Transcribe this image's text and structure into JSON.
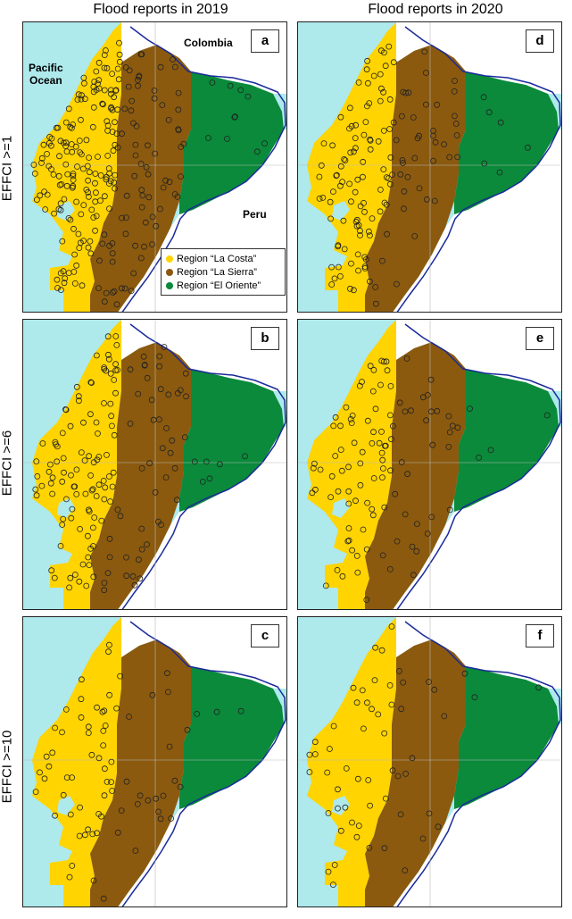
{
  "column_titles": [
    "Flood reports in 2019",
    "Flood reports in 2020"
  ],
  "row_titles": [
    "EFFCI >=1",
    "EFFCI >=6",
    "EFFCI >=10"
  ],
  "panel_letters": [
    "a",
    "d",
    "b",
    "e",
    "c",
    "f"
  ],
  "map_labels": {
    "pacific": "Pacific\nOcean",
    "colombia": "Colombia",
    "peru": "Peru"
  },
  "legend": [
    {
      "label": "Region “La Costa”",
      "color": "#ffd400"
    },
    {
      "label": "Region “La Sierra”",
      "color": "#8b5a0f"
    },
    {
      "label": "Region “El Oriente”",
      "color": "#0a8a3a"
    }
  ],
  "colors": {
    "ocean": "#aee9ec",
    "land_outside": "#ffffff",
    "costa": "#ffd400",
    "sierra": "#8b5a0f",
    "oriente": "#0a8a3a",
    "border": "#1a2a9a"
  },
  "flood_report_density": {
    "EFFCI >=1": {
      "2019": "high",
      "2020": "medium"
    },
    "EFFCI >=6": {
      "2019": "medium",
      "2020": "medium-low"
    },
    "EFFCI >=10": {
      "2019": "low",
      "2020": "low"
    }
  }
}
